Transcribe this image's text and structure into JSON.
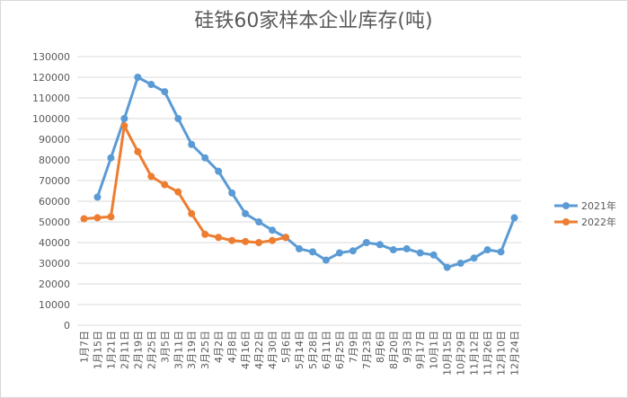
{
  "chart_data": {
    "type": "line",
    "title": "硅铁60家样本企业库存(吨)",
    "categories": [
      "1月7日",
      "1月15日",
      "1月21日",
      "2月11日",
      "2月19日",
      "2月25日",
      "3月5日",
      "3月11日",
      "3月19日",
      "3月25日",
      "4月2日",
      "4月8日",
      "4月16日",
      "4月22日",
      "4月30日",
      "5月6日",
      "5月14日",
      "5月28日",
      "6月11日",
      "6月25日",
      "7月9日",
      "7月23日",
      "8月6日",
      "8月20日",
      "9月3日",
      "9月17日",
      "10月1日",
      "10月15日",
      "10月29日",
      "11月12日",
      "11月26日",
      "12月10日",
      "12月24日"
    ],
    "series": [
      {
        "name": "2021年",
        "color": "#5b9bd5",
        "values": [
          null,
          62000,
          81000,
          100000,
          120000,
          116500,
          113000,
          100000,
          87500,
          81000,
          74500,
          64000,
          54000,
          50000,
          46000,
          42500,
          37000,
          35500,
          31500,
          35000,
          36000,
          40000,
          39000,
          36500,
          37000,
          35000,
          34000,
          28000,
          30000,
          32500,
          36500,
          35500,
          52000
        ]
      },
      {
        "name": "2022年",
        "color": "#ed7d31",
        "values": [
          51500,
          52000,
          52500,
          96500,
          84000,
          72000,
          68000,
          64500,
          54000,
          44000,
          42500,
          41000,
          40500,
          40000,
          41000,
          42500,
          null,
          null,
          null,
          null,
          null,
          null,
          null,
          null,
          null,
          null,
          null,
          null,
          null,
          null,
          null,
          null,
          null
        ]
      }
    ],
    "ylim": [
      0,
      130000
    ],
    "yticks": [
      0,
      10000,
      20000,
      30000,
      40000,
      50000,
      60000,
      70000,
      80000,
      90000,
      100000,
      110000,
      120000,
      130000
    ],
    "grid": true,
    "legend": "right"
  }
}
